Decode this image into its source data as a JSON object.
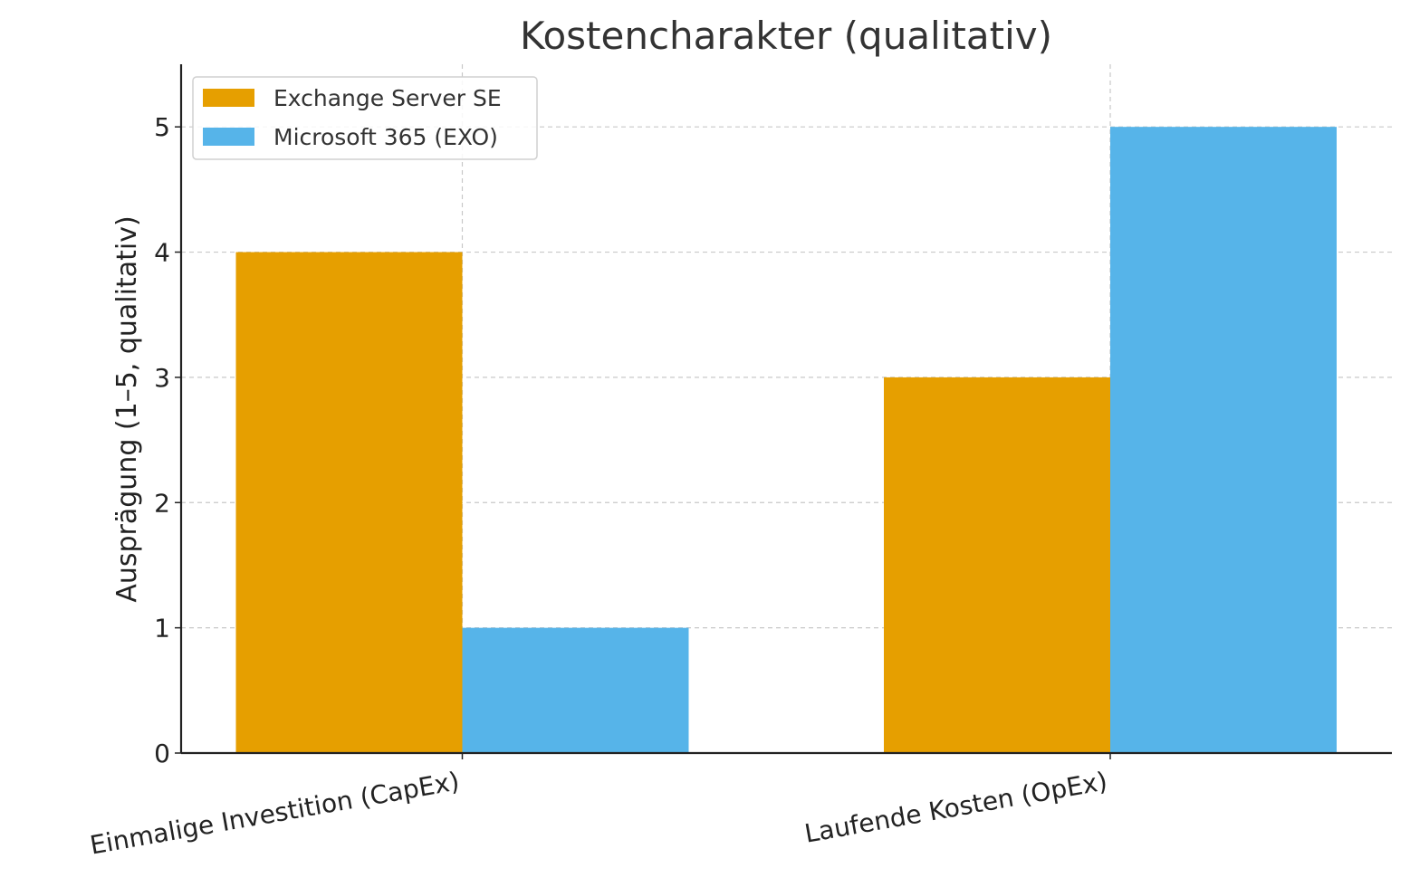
{
  "chart_data": {
    "type": "bar",
    "title": "Kostencharakter (qualitativ)",
    "xlabel": "",
    "ylabel": "Ausprägung (1–5, qualitativ)",
    "categories": [
      "Einmalige Investition (CapEx)",
      "Laufende Kosten (OpEx)"
    ],
    "series": [
      {
        "name": "Exchange Server SE",
        "values": [
          4,
          3
        ],
        "color": "#E69F00"
      },
      {
        "name": "Microsoft 365 (EXO)",
        "values": [
          1,
          5
        ],
        "color": "#56B4E9"
      }
    ],
    "ylim": [
      0,
      5.5
    ],
    "yticks": [
      0,
      1,
      2,
      3,
      4,
      5
    ],
    "grid": true,
    "legend_position": "top-left"
  }
}
